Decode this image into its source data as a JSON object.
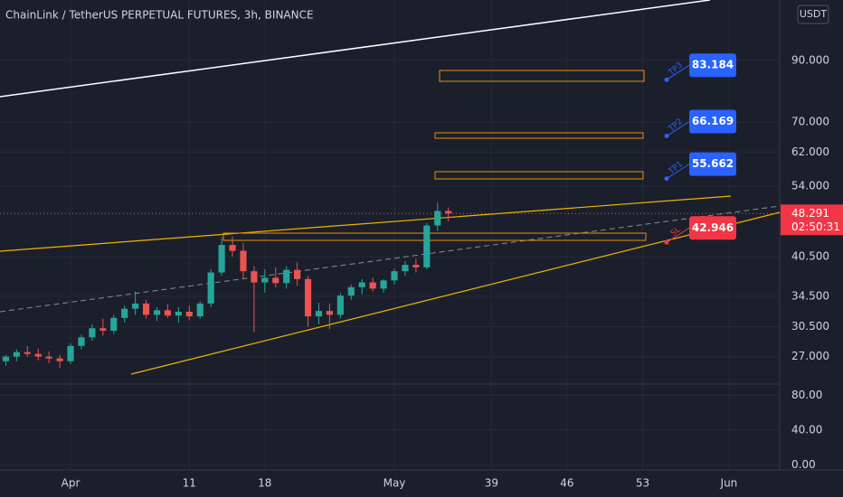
{
  "chart_data": [
    {
      "type": "candlestick",
      "title": "ChainLink / TetherUS PERPETUAL FUTURES, 3h, BINANCE",
      "currency": "USDT",
      "log_scale": true,
      "grid": true,
      "up_color": "#26a69a",
      "down_color": "#ef5350",
      "xlim": [
        -6.54,
        65.7
      ],
      "xticks": [
        {
          "value": 0,
          "label": "Apr"
        },
        11,
        18,
        {
          "value": 30,
          "label": "May"
        },
        39,
        46,
        53,
        {
          "value": 61,
          "label": "Jun"
        }
      ],
      "ylim": [
        24.6,
        115
      ],
      "yticks": [
        {
          "value": 27,
          "label": "27.000"
        },
        {
          "value": 30.5,
          "label": "30.500"
        },
        {
          "value": 34.5,
          "label": "34.500"
        },
        {
          "value": 40.5,
          "label": "40.500"
        },
        {
          "value": 54,
          "label": "54.000"
        },
        {
          "value": 62,
          "label": "62.000"
        },
        {
          "value": 70,
          "label": "70.000"
        },
        {
          "value": 90,
          "label": "90.000"
        }
      ],
      "x": [
        -6,
        -5,
        -4,
        -3,
        -2,
        -1,
        0,
        1,
        2,
        3,
        4,
        5,
        6,
        7,
        8,
        9,
        10,
        11,
        12,
        13,
        14,
        15,
        16,
        17,
        18,
        19,
        20,
        21,
        22,
        23,
        24,
        25,
        26,
        27,
        28,
        29,
        30,
        31,
        32,
        33,
        34,
        35
      ],
      "open": [
        26.5,
        27.0,
        27.5,
        27.3,
        27.0,
        26.8,
        26.5,
        28.2,
        29.2,
        30.3,
        30.0,
        31.6,
        32.8,
        33.5,
        32.0,
        32.6,
        31.9,
        32.4,
        31.8,
        33.5,
        38.0,
        42.5,
        41.5,
        38.2,
        36.5,
        37.2,
        36.4,
        38.4,
        37.0,
        31.8,
        32.5,
        32.0,
        34.6,
        35.8,
        36.5,
        35.6,
        36.8,
        38.2,
        39.2,
        38.8,
        46.0,
        48.8
      ],
      "high": [
        27.2,
        27.8,
        28.2,
        27.9,
        27.6,
        27.2,
        28.5,
        29.5,
        30.8,
        31.5,
        32.0,
        33.2,
        35.2,
        34.0,
        33.0,
        33.4,
        33.0,
        33.2,
        33.8,
        38.5,
        43.8,
        44.0,
        42.8,
        39.0,
        38.5,
        38.8,
        39.0,
        39.6,
        37.5,
        33.6,
        33.5,
        35.0,
        36.2,
        37.0,
        37.2,
        37.0,
        38.6,
        39.8,
        40.2,
        46.5,
        50.5,
        49.5
      ],
      "low": [
        26.0,
        26.5,
        27.0,
        26.6,
        26.3,
        25.8,
        26.2,
        27.8,
        28.8,
        29.4,
        29.6,
        31.0,
        32.0,
        31.5,
        31.2,
        31.6,
        31.0,
        31.3,
        31.5,
        33.0,
        37.5,
        40.5,
        37.0,
        29.8,
        35.0,
        35.8,
        35.6,
        36.0,
        30.5,
        30.8,
        30.2,
        31.5,
        34.0,
        34.8,
        35.2,
        35.0,
        36.2,
        37.5,
        38.0,
        38.5,
        45.0,
        46.8
      ],
      "close": [
        27.0,
        27.5,
        27.3,
        27.0,
        26.8,
        26.5,
        28.2,
        29.2,
        30.3,
        30.0,
        31.6,
        32.8,
        33.5,
        32.0,
        32.6,
        31.9,
        32.4,
        31.8,
        33.5,
        38.0,
        42.5,
        41.5,
        38.2,
        36.5,
        37.2,
        36.4,
        38.4,
        37.0,
        31.8,
        32.5,
        32.0,
        34.6,
        35.8,
        36.5,
        35.6,
        36.8,
        38.2,
        39.2,
        38.8,
        46.0,
        48.8,
        48.291
      ],
      "current_price": 48.291,
      "countdown": "02:50:31",
      "targets": [
        {
          "name": "TP3",
          "value": 83.184,
          "color": "#2962ff"
        },
        {
          "name": "TP2",
          "value": 66.169,
          "color": "#2962ff"
        },
        {
          "name": "TP1",
          "value": 55.662,
          "color": "#2962ff"
        },
        {
          "name": "SL",
          "value": 42.946,
          "color": "#f23645"
        }
      ]
    },
    {
      "type": "volume",
      "ylim": [
        -11,
        93
      ],
      "yticks": [
        {
          "value": 80,
          "label": "80.00"
        },
        {
          "value": 40,
          "label": "40.00"
        },
        {
          "value": 0,
          "label": "0.00"
        }
      ]
    }
  ]
}
